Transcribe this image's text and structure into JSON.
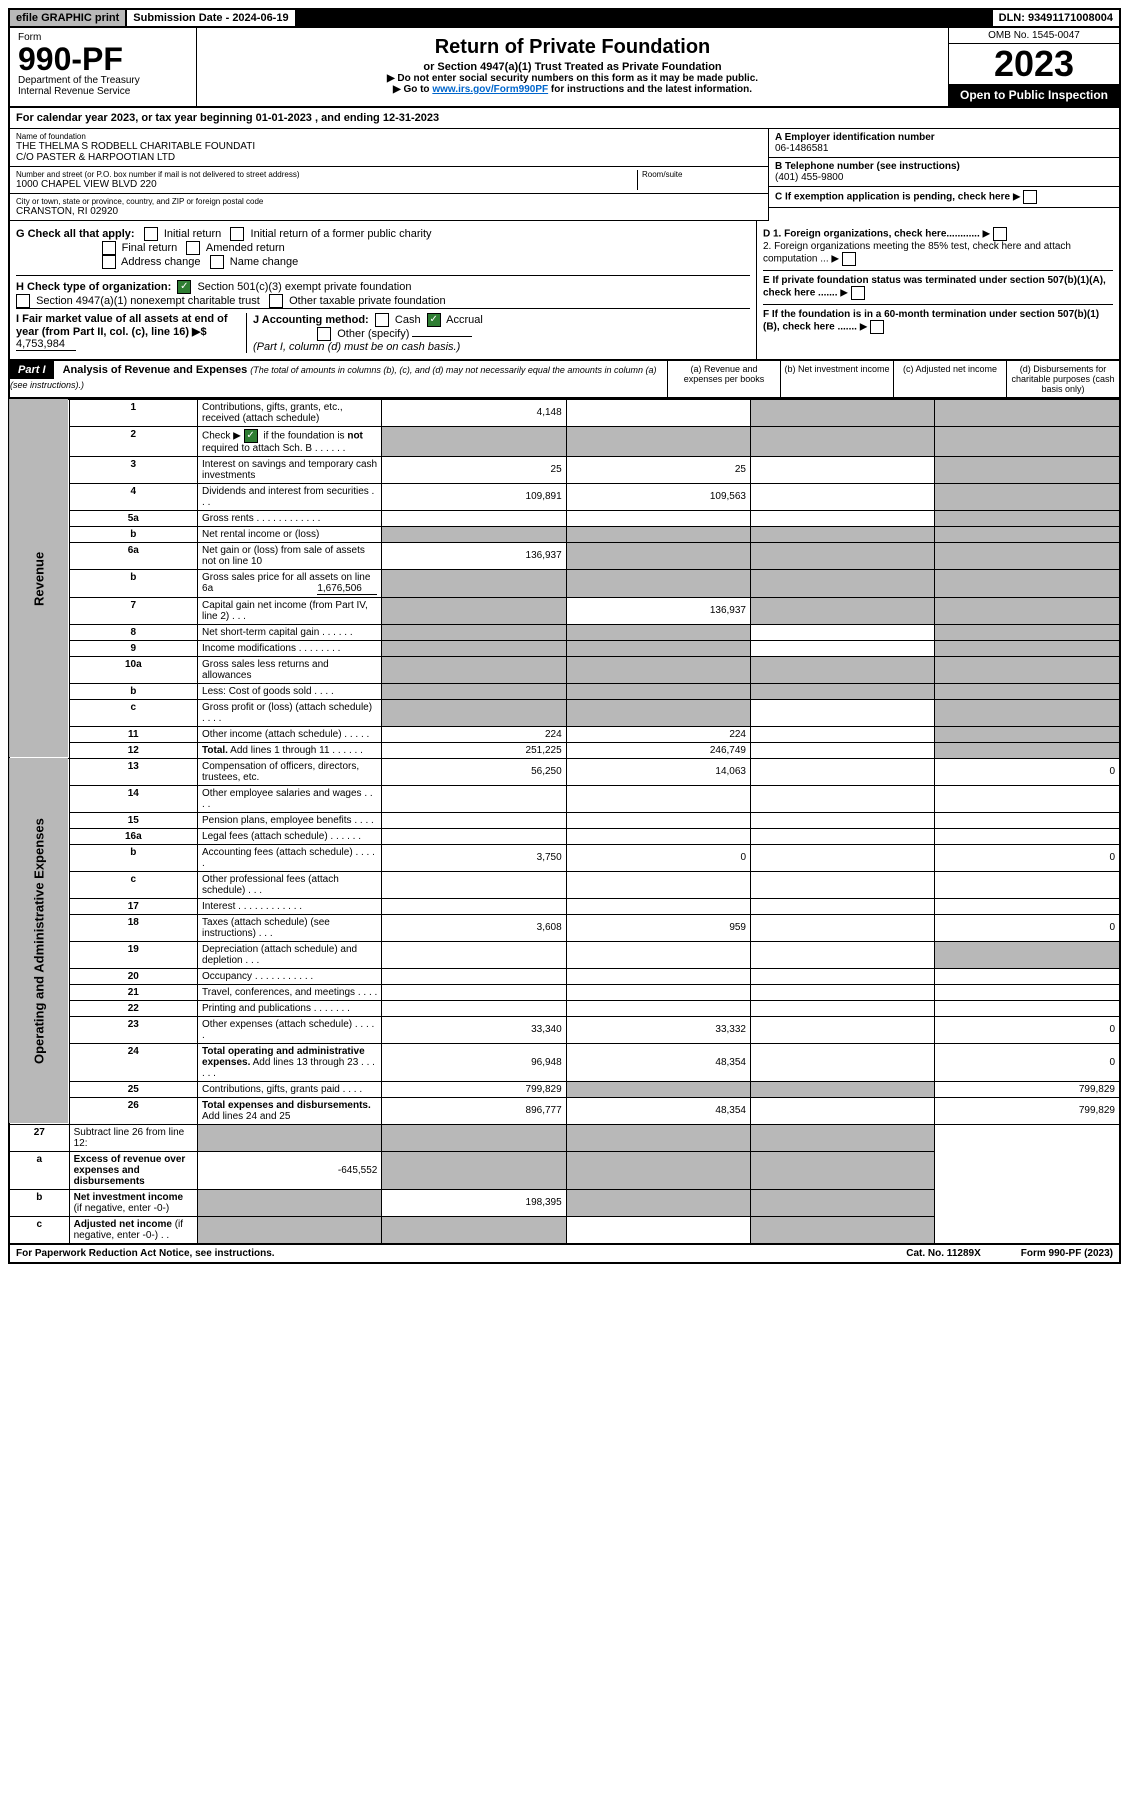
{
  "top": {
    "efile": "efile GRAPHIC print",
    "submission_label": "Submission Date - 2024-06-19",
    "dln": "DLN: 93491171008004"
  },
  "header": {
    "form_word": "Form",
    "form_no": "990-PF",
    "dept": "Department of the Treasury",
    "irs": "Internal Revenue Service",
    "title": "Return of Private Foundation",
    "subtitle": "or Section 4947(a)(1) Trust Treated as Private Foundation",
    "note1": "▶ Do not enter social security numbers on this form as it may be made public.",
    "note2_pre": "▶ Go to ",
    "note2_link": "www.irs.gov/Form990PF",
    "note2_post": " for instructions and the latest information.",
    "omb": "OMB No. 1545-0047",
    "year": "2023",
    "inspection": "Open to Public Inspection"
  },
  "cal_year": {
    "pre": "For calendar year 2023, or tax year beginning ",
    "begin": "01-01-2023",
    "mid": " , and ending ",
    "end": "12-31-2023"
  },
  "entity": {
    "name_label": "Name of foundation",
    "name1": "THE THELMA S RODBELL CHARITABLE FOUNDATI",
    "name2": "C/O PASTER & HARPOOTIAN LTD",
    "addr_label": "Number and street (or P.O. box number if mail is not delivered to street address)",
    "addr": "1000 CHAPEL VIEW BLVD 220",
    "room_label": "Room/suite",
    "city_label": "City or town, state or province, country, and ZIP or foreign postal code",
    "city": "CRANSTON, RI  02920",
    "a_label": "A Employer identification number",
    "a_val": "06-1486581",
    "b_label": "B Telephone number (see instructions)",
    "b_val": "(401) 455-9800",
    "c_label": "C If exemption application is pending, check here"
  },
  "checks": {
    "g_label": "G Check all that apply:",
    "g_opts": [
      "Initial return",
      "Initial return of a former public charity",
      "Final return",
      "Amended return",
      "Address change",
      "Name change"
    ],
    "h_label": "H Check type of organization:",
    "h_1": "Section 501(c)(3) exempt private foundation",
    "h_2": "Section 4947(a)(1) nonexempt charitable trust",
    "h_3": "Other taxable private foundation",
    "i_label": "I Fair market value of all assets at end of year (from Part II, col. (c), line 16) ▶$",
    "i_val": "4,753,984",
    "j_label": "J Accounting method:",
    "j_cash": "Cash",
    "j_accrual": "Accrual",
    "j_other": "Other (specify)",
    "j_note": "(Part I, column (d) must be on cash basis.)",
    "d1": "D 1. Foreign organizations, check here............",
    "d2": "2. Foreign organizations meeting the 85% test, check here and attach computation ...",
    "e": "E  If private foundation status was terminated under section 507(b)(1)(A), check here .......",
    "f": "F  If the foundation is in a 60-month termination under section 507(b)(1)(B), check here .......",
    "arrow": "▶"
  },
  "part1": {
    "label": "Part I",
    "title": "Analysis of Revenue and Expenses",
    "title_note": "(The total of amounts in columns (b), (c), and (d) may not necessarily equal the amounts in column (a) (see instructions).)",
    "col_a": "(a)  Revenue and expenses per books",
    "col_b": "(b)  Net investment income",
    "col_c": "(c)  Adjusted net income",
    "col_d": "(d)  Disbursements for charitable purposes (cash basis only)"
  },
  "side": {
    "rev": "Revenue",
    "exp": "Operating and Administrative Expenses"
  },
  "rows": {
    "1": {
      "n": "1",
      "d": "",
      "a": "4,148",
      "b": "",
      "c": "",
      "shade_c": true,
      "shade_d": true
    },
    "2": {
      "n": "2",
      "d": "",
      "a": "",
      "b": "",
      "c": "",
      "shade_a": true,
      "shade_b": true,
      "shade_c": true,
      "shade_d": true
    },
    "3": {
      "n": "3",
      "d": "",
      "a": "25",
      "b": "25",
      "c": "",
      "shade_d": true
    },
    "4": {
      "n": "4",
      "d": "",
      "a": "109,891",
      "b": "109,563",
      "c": "",
      "shade_d": true
    },
    "5a": {
      "n": "5a",
      "d": "",
      "a": "",
      "b": "",
      "c": "",
      "shade_d": true
    },
    "5b": {
      "n": "b",
      "d": "",
      "a": "",
      "b": "",
      "c": "",
      "shade_a": true,
      "shade_b": true,
      "shade_c": true,
      "shade_d": true
    },
    "6a": {
      "n": "6a",
      "d": "",
      "a": "136,937",
      "b": "",
      "c": "",
      "shade_b": true,
      "shade_c": true,
      "shade_d": true
    },
    "6b": {
      "n": "b",
      "d": "",
      "extra": "1,676,506",
      "a": "",
      "b": "",
      "c": "",
      "shade_a": true,
      "shade_b": true,
      "shade_c": true,
      "shade_d": true
    },
    "7": {
      "n": "7",
      "d": "",
      "a": "",
      "b": "136,937",
      "c": "",
      "shade_a": true,
      "shade_c": true,
      "shade_d": true
    },
    "8": {
      "n": "8",
      "d": "",
      "a": "",
      "b": "",
      "c": "",
      "shade_a": true,
      "shade_b": true,
      "shade_d": true
    },
    "9": {
      "n": "9",
      "d": "",
      "a": "",
      "b": "",
      "c": "",
      "shade_a": true,
      "shade_b": true,
      "shade_d": true
    },
    "10a": {
      "n": "10a",
      "d": "",
      "a": "",
      "b": "",
      "c": "",
      "shade_a": true,
      "shade_b": true,
      "shade_c": true,
      "shade_d": true
    },
    "10b": {
      "n": "b",
      "d": "",
      "a": "",
      "b": "",
      "c": "",
      "shade_a": true,
      "shade_b": true,
      "shade_c": true,
      "shade_d": true
    },
    "10c": {
      "n": "c",
      "d": "",
      "a": "",
      "b": "",
      "c": "",
      "shade_a": true,
      "shade_b": true,
      "shade_d": true
    },
    "11": {
      "n": "11",
      "d": "",
      "a": "224",
      "b": "224",
      "c": "",
      "shade_d": true
    },
    "12": {
      "n": "12",
      "d": "",
      "a": "251,225",
      "b": "246,749",
      "c": "",
      "shade_d": true,
      "bold": true
    },
    "13": {
      "n": "13",
      "d": "0",
      "a": "56,250",
      "b": "14,063",
      "c": ""
    },
    "14": {
      "n": "14",
      "d": "",
      "a": "",
      "b": "",
      "c": ""
    },
    "15": {
      "n": "15",
      "d": "",
      "a": "",
      "b": "",
      "c": ""
    },
    "16a": {
      "n": "16a",
      "d": "",
      "a": "",
      "b": "",
      "c": ""
    },
    "16b": {
      "n": "b",
      "d": "0",
      "a": "3,750",
      "b": "0",
      "c": ""
    },
    "16c": {
      "n": "c",
      "d": "",
      "a": "",
      "b": "",
      "c": ""
    },
    "17": {
      "n": "17",
      "d": "",
      "a": "",
      "b": "",
      "c": ""
    },
    "18": {
      "n": "18",
      "d": "0",
      "a": "3,608",
      "b": "959",
      "c": ""
    },
    "19": {
      "n": "19",
      "d": "",
      "a": "",
      "b": "",
      "c": "",
      "shade_d": true
    },
    "20": {
      "n": "20",
      "d": "",
      "a": "",
      "b": "",
      "c": ""
    },
    "21": {
      "n": "21",
      "d": "",
      "a": "",
      "b": "",
      "c": ""
    },
    "22": {
      "n": "22",
      "d": "",
      "a": "",
      "b": "",
      "c": ""
    },
    "23": {
      "n": "23",
      "d": "0",
      "a": "33,340",
      "b": "33,332",
      "c": ""
    },
    "24": {
      "n": "24",
      "d": "0",
      "a": "96,948",
      "b": "48,354",
      "c": "",
      "bold": true
    },
    "25": {
      "n": "25",
      "d": "799,829",
      "a": "799,829",
      "b": "",
      "c": "",
      "shade_b": true,
      "shade_c": true
    },
    "26": {
      "n": "26",
      "d": "799,829",
      "a": "896,777",
      "b": "48,354",
      "c": "",
      "bold": true
    },
    "27": {
      "n": "27",
      "d": "",
      "a": "",
      "b": "",
      "c": "",
      "shade_a": true,
      "shade_b": true,
      "shade_c": true,
      "shade_d": true
    },
    "27a": {
      "n": "a",
      "d": "",
      "a": "-645,552",
      "b": "",
      "c": "",
      "shade_b": true,
      "shade_c": true,
      "shade_d": true,
      "bold": true
    },
    "27b": {
      "n": "b",
      "d": "",
      "a": "",
      "b": "198,395",
      "c": "",
      "shade_a": true,
      "shade_c": true,
      "shade_d": true,
      "bold": true
    },
    "27c": {
      "n": "c",
      "d": "",
      "a": "",
      "b": "",
      "c": "",
      "shade_a": true,
      "shade_b": true,
      "shade_d": true,
      "bold": true
    }
  },
  "footer": {
    "left": "For Paperwork Reduction Act Notice, see instructions.",
    "mid": "Cat. No. 11289X",
    "right": "Form 990-PF (2023)"
  }
}
